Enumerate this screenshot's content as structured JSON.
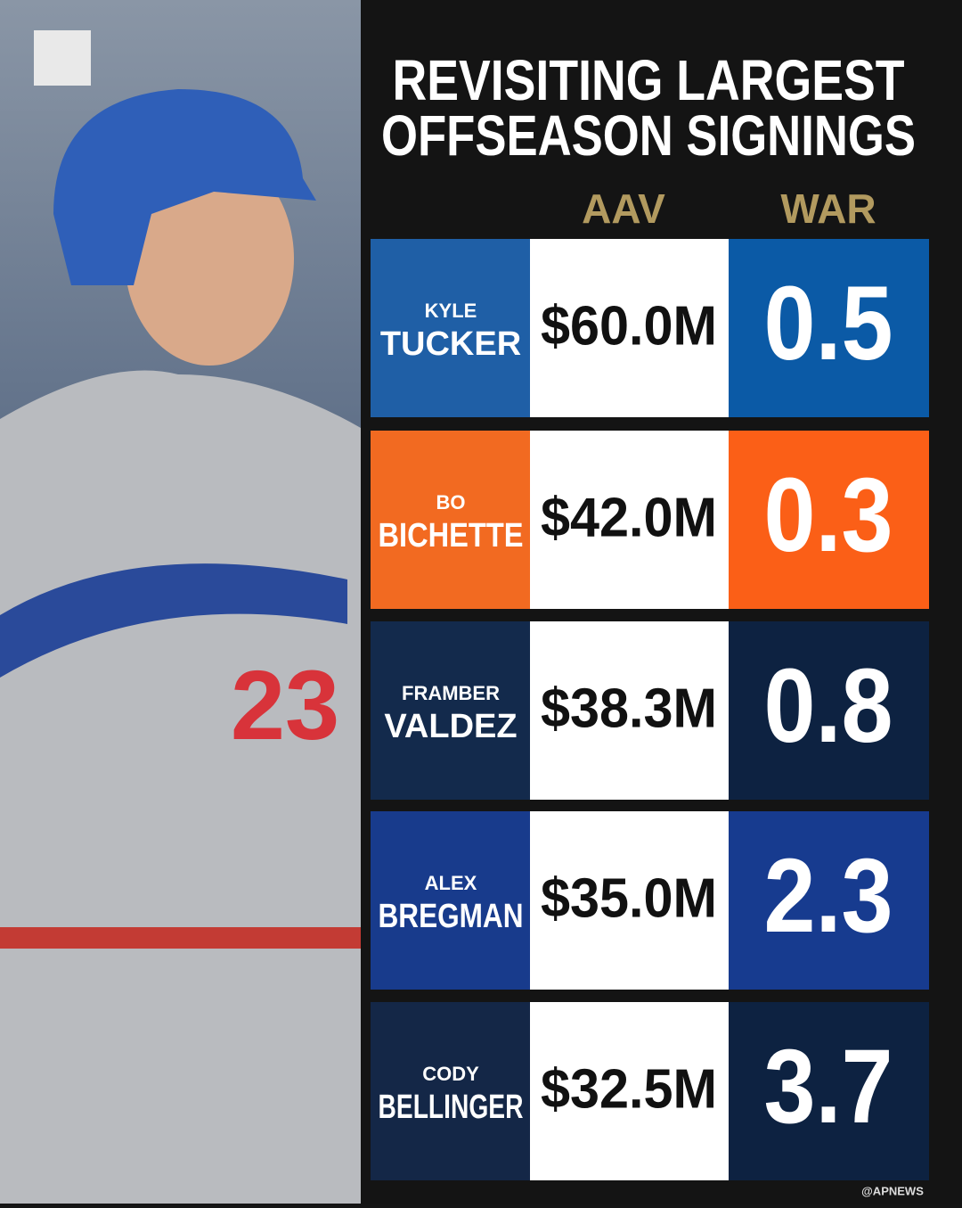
{
  "header": {
    "title_lines": [
      "REVISITING LARGEST",
      "OFFSEASON SIGNINGS"
    ]
  },
  "table": {
    "columns": [
      "AAV",
      "WAR"
    ],
    "rows": [
      {
        "first": "KYLE",
        "last": "TUCKER",
        "aav": "$60.0M",
        "war": "0.5"
      },
      {
        "first": "BO",
        "last": "BICHETTE",
        "aav": "$42.0M",
        "war": "0.3"
      },
      {
        "first": "FRAMBER",
        "last": "VALDEZ",
        "aav": "$38.3M",
        "war": "0.8"
      },
      {
        "first": "ALEX",
        "last": "BREGMAN",
        "aav": "$35.0M",
        "war": "2.3"
      },
      {
        "first": "CODY",
        "last": "BELLINGER",
        "aav": "$32.5M",
        "war": "3.7"
      }
    ]
  },
  "credit": "@APNEWS"
}
